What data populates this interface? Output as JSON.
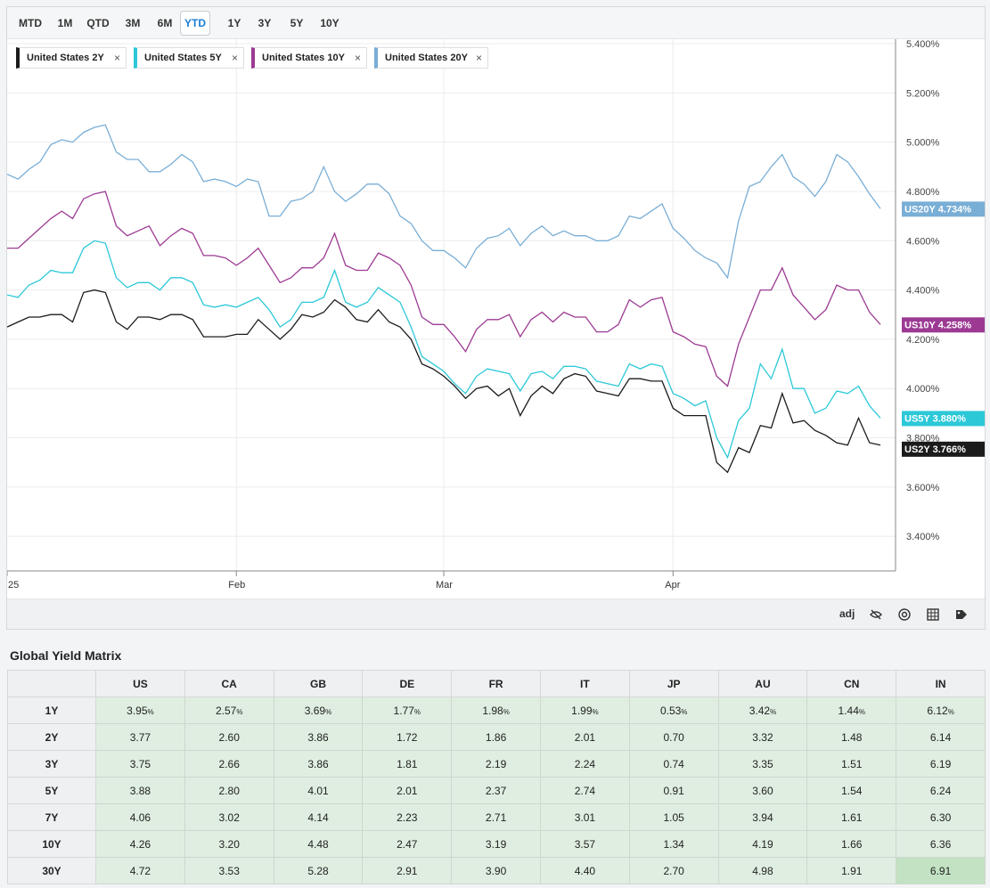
{
  "range_tabs": [
    "MTD",
    "1M",
    "QTD",
    "3M",
    "6M",
    "YTD",
    "1Y",
    "3Y",
    "5Y",
    "10Y"
  ],
  "active_range": "YTD",
  "legend": [
    {
      "label": "United States 2Y",
      "color": "#1b1b1b",
      "close": "×"
    },
    {
      "label": "United States 5Y",
      "color": "#2cc8d8",
      "close": "×"
    },
    {
      "label": "United States 10Y",
      "color": "#9c3a93",
      "close": "×"
    },
    {
      "label": "United States 20Y",
      "color": "#79aed6",
      "close": "×"
    }
  ],
  "toolbar": {
    "adj_label": "adj",
    "icons": [
      "eye-off-icon",
      "target-icon",
      "grid-icon",
      "tag-icon"
    ]
  },
  "chart_data": {
    "type": "line",
    "x_ticks": [
      {
        "label": "25",
        "index": 0
      },
      {
        "label": "Feb",
        "index": 21
      },
      {
        "label": "Mar",
        "index": 40
      },
      {
        "label": "Apr",
        "index": 61
      }
    ],
    "y_ticks": [
      "3.400%",
      "3.600%",
      "3.800%",
      "4.000%",
      "4.200%",
      "4.400%",
      "4.600%",
      "4.800%",
      "5.000%",
      "5.200%",
      "5.400%"
    ],
    "ylim": [
      3.35,
      5.4
    ],
    "series": [
      {
        "name": "United States 20Y",
        "tag": "US20Y",
        "last_label": "4.734%",
        "color": "#79aed6",
        "values": [
          4.87,
          4.85,
          4.89,
          4.92,
          4.99,
          5.01,
          5.0,
          5.04,
          5.06,
          5.07,
          4.96,
          4.93,
          4.93,
          4.88,
          4.88,
          4.91,
          4.95,
          4.92,
          4.84,
          4.85,
          4.84,
          4.82,
          4.85,
          4.84,
          4.7,
          4.7,
          4.76,
          4.77,
          4.8,
          4.9,
          4.8,
          4.76,
          4.79,
          4.83,
          4.83,
          4.79,
          4.7,
          4.67,
          4.6,
          4.56,
          4.56,
          4.53,
          4.49,
          4.57,
          4.61,
          4.62,
          4.65,
          4.58,
          4.63,
          4.66,
          4.62,
          4.64,
          4.62,
          4.62,
          4.6,
          4.6,
          4.62,
          4.7,
          4.69,
          4.72,
          4.75,
          4.65,
          4.61,
          4.56,
          4.53,
          4.51,
          4.45,
          4.68,
          4.82,
          4.84,
          4.9,
          4.95,
          4.86,
          4.83,
          4.78,
          4.84,
          4.95,
          4.92,
          4.86,
          4.79,
          4.73
        ]
      },
      {
        "name": "United States 10Y",
        "tag": "US10Y",
        "last_label": "4.258%",
        "color": "#9c3a93",
        "values": [
          4.57,
          4.57,
          4.61,
          4.65,
          4.69,
          4.72,
          4.69,
          4.77,
          4.79,
          4.8,
          4.66,
          4.62,
          4.64,
          4.66,
          4.58,
          4.62,
          4.65,
          4.63,
          4.54,
          4.54,
          4.53,
          4.5,
          4.53,
          4.57,
          4.5,
          4.43,
          4.45,
          4.49,
          4.49,
          4.53,
          4.63,
          4.5,
          4.48,
          4.48,
          4.55,
          4.53,
          4.5,
          4.42,
          4.29,
          4.26,
          4.26,
          4.21,
          4.15,
          4.24,
          4.28,
          4.28,
          4.3,
          4.21,
          4.28,
          4.31,
          4.27,
          4.31,
          4.29,
          4.29,
          4.23,
          4.23,
          4.26,
          4.36,
          4.33,
          4.36,
          4.37,
          4.23,
          4.21,
          4.18,
          4.17,
          4.05,
          4.01,
          4.18,
          4.29,
          4.4,
          4.4,
          4.49,
          4.38,
          4.33,
          4.28,
          4.32,
          4.42,
          4.4,
          4.4,
          4.31,
          4.26
        ]
      },
      {
        "name": "United States 5Y",
        "tag": "US5Y",
        "last_label": "3.880%",
        "color": "#2cc8d8",
        "values": [
          4.38,
          4.37,
          4.42,
          4.44,
          4.48,
          4.47,
          4.47,
          4.57,
          4.6,
          4.59,
          4.45,
          4.41,
          4.43,
          4.43,
          4.4,
          4.45,
          4.45,
          4.43,
          4.34,
          4.33,
          4.34,
          4.33,
          4.35,
          4.37,
          4.32,
          4.25,
          4.28,
          4.35,
          4.35,
          4.37,
          4.48,
          4.35,
          4.33,
          4.35,
          4.41,
          4.38,
          4.35,
          4.25,
          4.13,
          4.1,
          4.07,
          4.02,
          3.98,
          4.05,
          4.08,
          4.07,
          4.06,
          3.99,
          4.06,
          4.07,
          4.04,
          4.09,
          4.09,
          4.08,
          4.03,
          4.02,
          4.01,
          4.1,
          4.08,
          4.1,
          4.09,
          3.98,
          3.96,
          3.93,
          3.95,
          3.8,
          3.72,
          3.87,
          3.92,
          4.1,
          4.04,
          4.16,
          4.0,
          4.0,
          3.9,
          3.92,
          3.99,
          3.98,
          4.01,
          3.93,
          3.88
        ]
      },
      {
        "name": "United States 2Y",
        "tag": "US2Y",
        "last_label": "3.766%",
        "color": "#1b1b1b",
        "values": [
          4.25,
          4.27,
          4.29,
          4.29,
          4.3,
          4.3,
          4.27,
          4.39,
          4.4,
          4.39,
          4.27,
          4.24,
          4.29,
          4.29,
          4.28,
          4.3,
          4.3,
          4.28,
          4.21,
          4.21,
          4.21,
          4.22,
          4.22,
          4.28,
          4.24,
          4.2,
          4.24,
          4.3,
          4.29,
          4.31,
          4.36,
          4.33,
          4.28,
          4.27,
          4.32,
          4.27,
          4.25,
          4.2,
          4.1,
          4.08,
          4.05,
          4.01,
          3.96,
          4.0,
          4.01,
          3.97,
          4.0,
          3.89,
          3.97,
          4.01,
          3.98,
          4.04,
          4.06,
          4.05,
          3.99,
          3.98,
          3.97,
          4.04,
          4.04,
          4.03,
          4.03,
          3.92,
          3.89,
          3.89,
          3.89,
          3.7,
          3.66,
          3.76,
          3.74,
          3.85,
          3.84,
          3.98,
          3.86,
          3.87,
          3.83,
          3.81,
          3.78,
          3.77,
          3.88,
          3.78,
          3.77
        ]
      }
    ]
  },
  "matrix": {
    "title": "Global Yield Matrix",
    "columns": [
      "US",
      "CA",
      "GB",
      "DE",
      "FR",
      "IT",
      "JP",
      "AU",
      "CN",
      "IN"
    ],
    "rows": [
      {
        "label": "1Y",
        "values": [
          "3.95",
          "2.57",
          "3.69",
          "1.77",
          "1.98",
          "1.99",
          "0.53",
          "3.42",
          "1.44",
          "6.12"
        ],
        "suffix": "%"
      },
      {
        "label": "2Y",
        "values": [
          "3.77",
          "2.60",
          "3.86",
          "1.72",
          "1.86",
          "2.01",
          "0.70",
          "3.32",
          "1.48",
          "6.14"
        ]
      },
      {
        "label": "3Y",
        "values": [
          "3.75",
          "2.66",
          "3.86",
          "1.81",
          "2.19",
          "2.24",
          "0.74",
          "3.35",
          "1.51",
          "6.19"
        ]
      },
      {
        "label": "5Y",
        "values": [
          "3.88",
          "2.80",
          "4.01",
          "2.01",
          "2.37",
          "2.74",
          "0.91",
          "3.60",
          "1.54",
          "6.24"
        ]
      },
      {
        "label": "7Y",
        "values": [
          "4.06",
          "3.02",
          "4.14",
          "2.23",
          "2.71",
          "3.01",
          "1.05",
          "3.94",
          "1.61",
          "6.30"
        ]
      },
      {
        "label": "10Y",
        "values": [
          "4.26",
          "3.20",
          "4.48",
          "2.47",
          "3.19",
          "3.57",
          "1.34",
          "4.19",
          "1.66",
          "6.36"
        ]
      },
      {
        "label": "30Y",
        "values": [
          "4.72",
          "3.53",
          "5.28",
          "2.91",
          "3.90",
          "4.40",
          "2.70",
          "4.98",
          "1.91",
          "6.91"
        ]
      }
    ],
    "highlight": {
      "row": 6,
      "col": 9
    }
  }
}
